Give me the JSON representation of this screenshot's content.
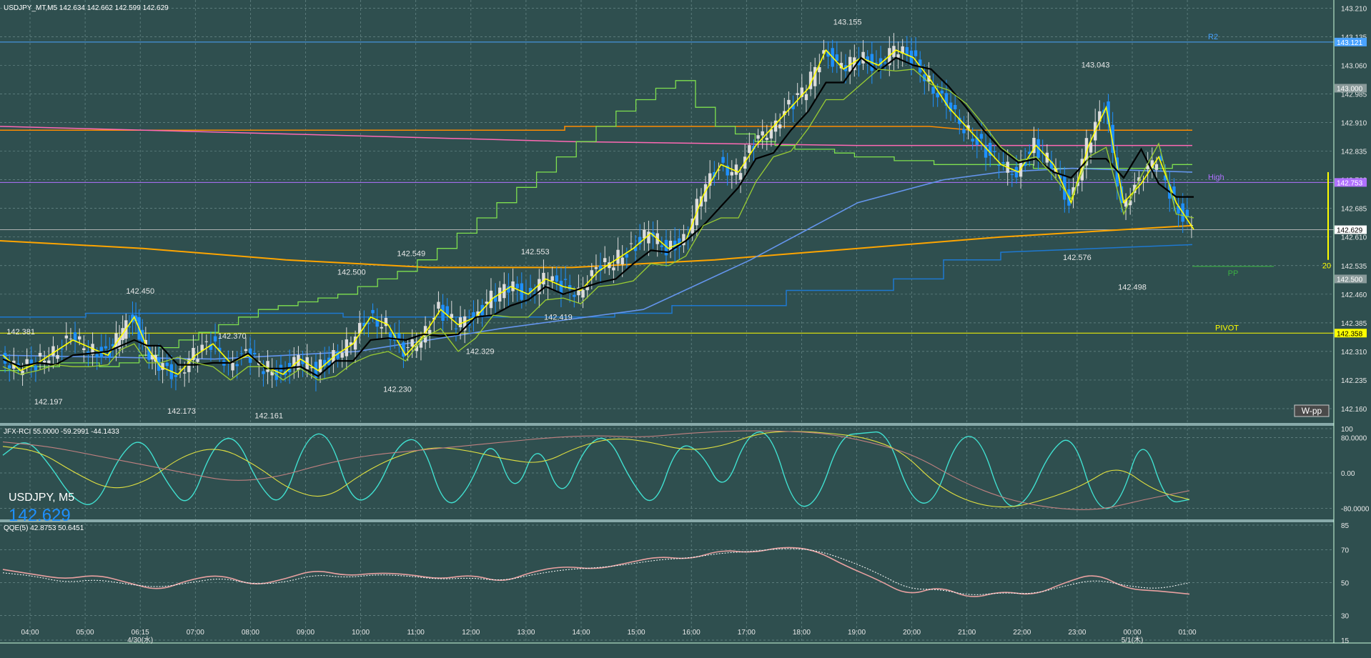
{
  "main_header": "USDJPY_MT,M5  142.634 142.662 142.599 142.629",
  "corner_label": {
    "symbol": "USDJPY, M5",
    "price": "142.629"
  },
  "colors": {
    "bg": "#2f4f4f",
    "grid": "#6a8a8a",
    "up": "#dcdcdc",
    "down": "#1e90ff",
    "ema1": "#ffff00",
    "ema2": "#000000",
    "ema3": "#9acd32",
    "ema4": "#7fbf3f",
    "sma_long": "#ffa500",
    "sma_blue": "#6495ed",
    "pink": "#ff69b4",
    "orange_line": "#ff8c00",
    "cyan": "#40e0d0"
  },
  "chart_data": [
    {
      "type": "candlestick",
      "title": "USDJPY_MT,M5",
      "ylim": [
        142.13,
        143.22
      ],
      "y_ticks": [
        "143.210",
        "143.135",
        "143.060",
        "142.985",
        "142.910",
        "142.835",
        "142.760",
        "142.685",
        "142.610",
        "142.535",
        "142.460",
        "142.385",
        "142.310",
        "142.235",
        "142.160"
      ],
      "x_ticks": [
        "04:00",
        "05:00",
        "06:15",
        "07:00",
        "08:00",
        "09:00",
        "10:00",
        "11:00",
        "12:00",
        "13:00",
        "14:00",
        "15:00",
        "16:00",
        "17:00",
        "18:00",
        "19:00",
        "20:00",
        "21:00",
        "22:00",
        "23:00",
        "00:00",
        "01:00"
      ],
      "date_labels": [
        {
          "text": "4/30(水)",
          "at": "06:15"
        },
        {
          "text": "5/1(木)",
          "at": "00:00"
        }
      ],
      "price_labels": [
        {
          "text": "142.381",
          "x": "03:50",
          "y": 142.381
        },
        {
          "text": "142.197",
          "x": "04:20",
          "y": 142.197
        },
        {
          "text": "142.450",
          "x": "06:15",
          "y": 142.45
        },
        {
          "text": "142.173",
          "x": "06:45",
          "y": 142.173
        },
        {
          "text": "142.370",
          "x": "07:40",
          "y": 142.37
        },
        {
          "text": "142.161",
          "x": "08:20",
          "y": 142.161
        },
        {
          "text": "142.500",
          "x": "09:50",
          "y": 142.5
        },
        {
          "text": "142.230",
          "x": "10:40",
          "y": 142.23
        },
        {
          "text": "142.549",
          "x": "10:55",
          "y": 142.549
        },
        {
          "text": "142.329",
          "x": "12:10",
          "y": 142.329
        },
        {
          "text": "142.553",
          "x": "13:10",
          "y": 142.553
        },
        {
          "text": "142.419",
          "x": "13:35",
          "y": 142.419
        },
        {
          "text": "143.155",
          "x": "18:50",
          "y": 143.155
        },
        {
          "text": "143.043",
          "x": "23:20",
          "y": 143.043
        },
        {
          "text": "142.576",
          "x": "23:00",
          "y": 142.576
        },
        {
          "text": "142.498",
          "x": "00:00",
          "y": 142.498
        }
      ],
      "levels": [
        {
          "name": "R2",
          "price": 143.121,
          "color": "#4aa3ff",
          "axis_label": "143.121"
        },
        {
          "name": "High",
          "price": 142.753,
          "color": "#b070ff",
          "axis_label": "142.753"
        },
        {
          "name": "PP",
          "price": 142.533,
          "color": "#3cb043",
          "axis_label": ""
        },
        {
          "name": "PIVOT",
          "price": 142.358,
          "color": "#ffff00",
          "axis_label": "142.358"
        }
      ],
      "axis_marks": [
        {
          "price": 143.0,
          "text": "143.000"
        },
        {
          "price": 142.5,
          "text": "142.500"
        }
      ],
      "current_price": {
        "price": 142.629,
        "text": "142.629"
      },
      "badge": "W-pp",
      "side_marker": "20",
      "series_path": {
        "close": [
          [
            0,
            142.3
          ],
          [
            20,
            142.26
          ],
          [
            40,
            142.28
          ],
          [
            60,
            142.31
          ],
          [
            80,
            142.34
          ],
          [
            100,
            142.32
          ],
          [
            120,
            142.3
          ],
          [
            135,
            142.35
          ],
          [
            150,
            142.4
          ],
          [
            165,
            142.32
          ],
          [
            180,
            142.27
          ],
          [
            200,
            142.25
          ],
          [
            220,
            142.3
          ],
          [
            240,
            142.33
          ],
          [
            260,
            142.28
          ],
          [
            280,
            142.3
          ],
          [
            300,
            142.27
          ],
          [
            320,
            142.25
          ],
          [
            340,
            142.29
          ],
          [
            360,
            142.26
          ],
          [
            380,
            142.3
          ],
          [
            400,
            142.33
          ],
          [
            420,
            142.4
          ],
          [
            440,
            142.38
          ],
          [
            460,
            142.3
          ],
          [
            480,
            142.35
          ],
          [
            500,
            142.42
          ],
          [
            520,
            142.38
          ],
          [
            540,
            142.4
          ],
          [
            560,
            142.45
          ],
          [
            580,
            142.48
          ],
          [
            600,
            142.46
          ],
          [
            620,
            142.5
          ],
          [
            640,
            142.48
          ],
          [
            660,
            142.47
          ],
          [
            680,
            142.52
          ],
          [
            700,
            142.55
          ],
          [
            720,
            142.58
          ],
          [
            740,
            142.62
          ],
          [
            760,
            142.58
          ],
          [
            780,
            142.6
          ],
          [
            800,
            142.72
          ],
          [
            820,
            142.8
          ],
          [
            840,
            142.78
          ],
          [
            860,
            142.85
          ],
          [
            880,
            142.9
          ],
          [
            900,
            142.95
          ],
          [
            920,
            143.0
          ],
          [
            940,
            143.1
          ],
          [
            960,
            143.05
          ],
          [
            980,
            143.08
          ],
          [
            1000,
            143.06
          ],
          [
            1020,
            143.1
          ],
          [
            1040,
            143.08
          ],
          [
            1060,
            143.02
          ],
          [
            1080,
            142.95
          ],
          [
            1100,
            142.9
          ],
          [
            1120,
            142.85
          ],
          [
            1140,
            142.8
          ],
          [
            1160,
            142.78
          ],
          [
            1180,
            142.85
          ],
          [
            1200,
            142.8
          ],
          [
            1220,
            142.7
          ],
          [
            1240,
            142.85
          ],
          [
            1260,
            142.95
          ],
          [
            1280,
            142.7
          ],
          [
            1300,
            142.75
          ],
          [
            1320,
            142.82
          ],
          [
            1340,
            142.7
          ],
          [
            1360,
            142.63
          ]
        ]
      }
    },
    {
      "type": "line",
      "title": "JFX-RCI 55.0000 -59.2991 -44.1433",
      "ylim": [
        -100,
        100
      ],
      "y_ticks": [
        "100",
        "80.0000",
        "0.00",
        "-80.0000"
      ],
      "series": [
        {
          "name": "RCI short",
          "color": "#40e0d0",
          "values": [
            40,
            80,
            20,
            -60,
            -80,
            40,
            85,
            -20,
            -85,
            60,
            90,
            -30,
            -80,
            80,
            95,
            -70,
            -50,
            70,
            80,
            -85,
            -40,
            90,
            -60,
            80,
            -70,
            60,
            90,
            -20,
            -85,
            70,
            50,
            -50,
            90,
            95,
            -80,
            -70,
            85,
            90,
            95,
            -60,
            -75,
            80,
            85,
            -80,
            -70,
            50,
            90,
            -85,
            -75,
            95,
            -70,
            -60
          ]
        },
        {
          "name": "RCI mid",
          "color": "#e0e040",
          "values": [
            60,
            50,
            0,
            -40,
            -20,
            40,
            60,
            20,
            -40,
            -60,
            0,
            40,
            60,
            50,
            30,
            20,
            60,
            80,
            70,
            50,
            60,
            90,
            95,
            90,
            80,
            50,
            -30,
            -70,
            -80,
            -60,
            -30,
            20,
            -40,
            -60
          ]
        },
        {
          "name": "RCI long",
          "color": "#c08080",
          "values": [
            70,
            60,
            40,
            20,
            0,
            -20,
            -10,
            20,
            40,
            50,
            60,
            70,
            80,
            85,
            80,
            90,
            95,
            95,
            90,
            70,
            40,
            -20,
            -60,
            -80,
            -85,
            -60,
            -40
          ]
        }
      ]
    },
    {
      "type": "line",
      "title": "QQE(5) 42.8753 50.6451",
      "ylim": [
        15,
        85
      ],
      "y_ticks": [
        "85",
        "70",
        "50",
        "30",
        "15"
      ],
      "series": [
        {
          "name": "QQE",
          "color": "#e8a0a0",
          "values": [
            58,
            55,
            52,
            55,
            50,
            45,
            52,
            55,
            48,
            52,
            58,
            54,
            56,
            55,
            52,
            55,
            50,
            57,
            60,
            58,
            62,
            66,
            64,
            70,
            68,
            72,
            70,
            60,
            52,
            42,
            48,
            40,
            45,
            42,
            50,
            56,
            46,
            45,
            43
          ]
        },
        {
          "name": "QQE signal",
          "color": "#ffffff",
          "values": [
            56,
            54,
            50,
            52,
            49,
            47,
            50,
            53,
            49,
            50,
            55,
            53,
            55,
            54,
            52,
            53,
            51,
            55,
            58,
            59,
            61,
            64,
            65,
            68,
            69,
            71,
            70,
            64,
            56,
            46,
            46,
            42,
            44,
            43,
            48,
            52,
            48,
            46,
            50
          ]
        }
      ]
    }
  ]
}
